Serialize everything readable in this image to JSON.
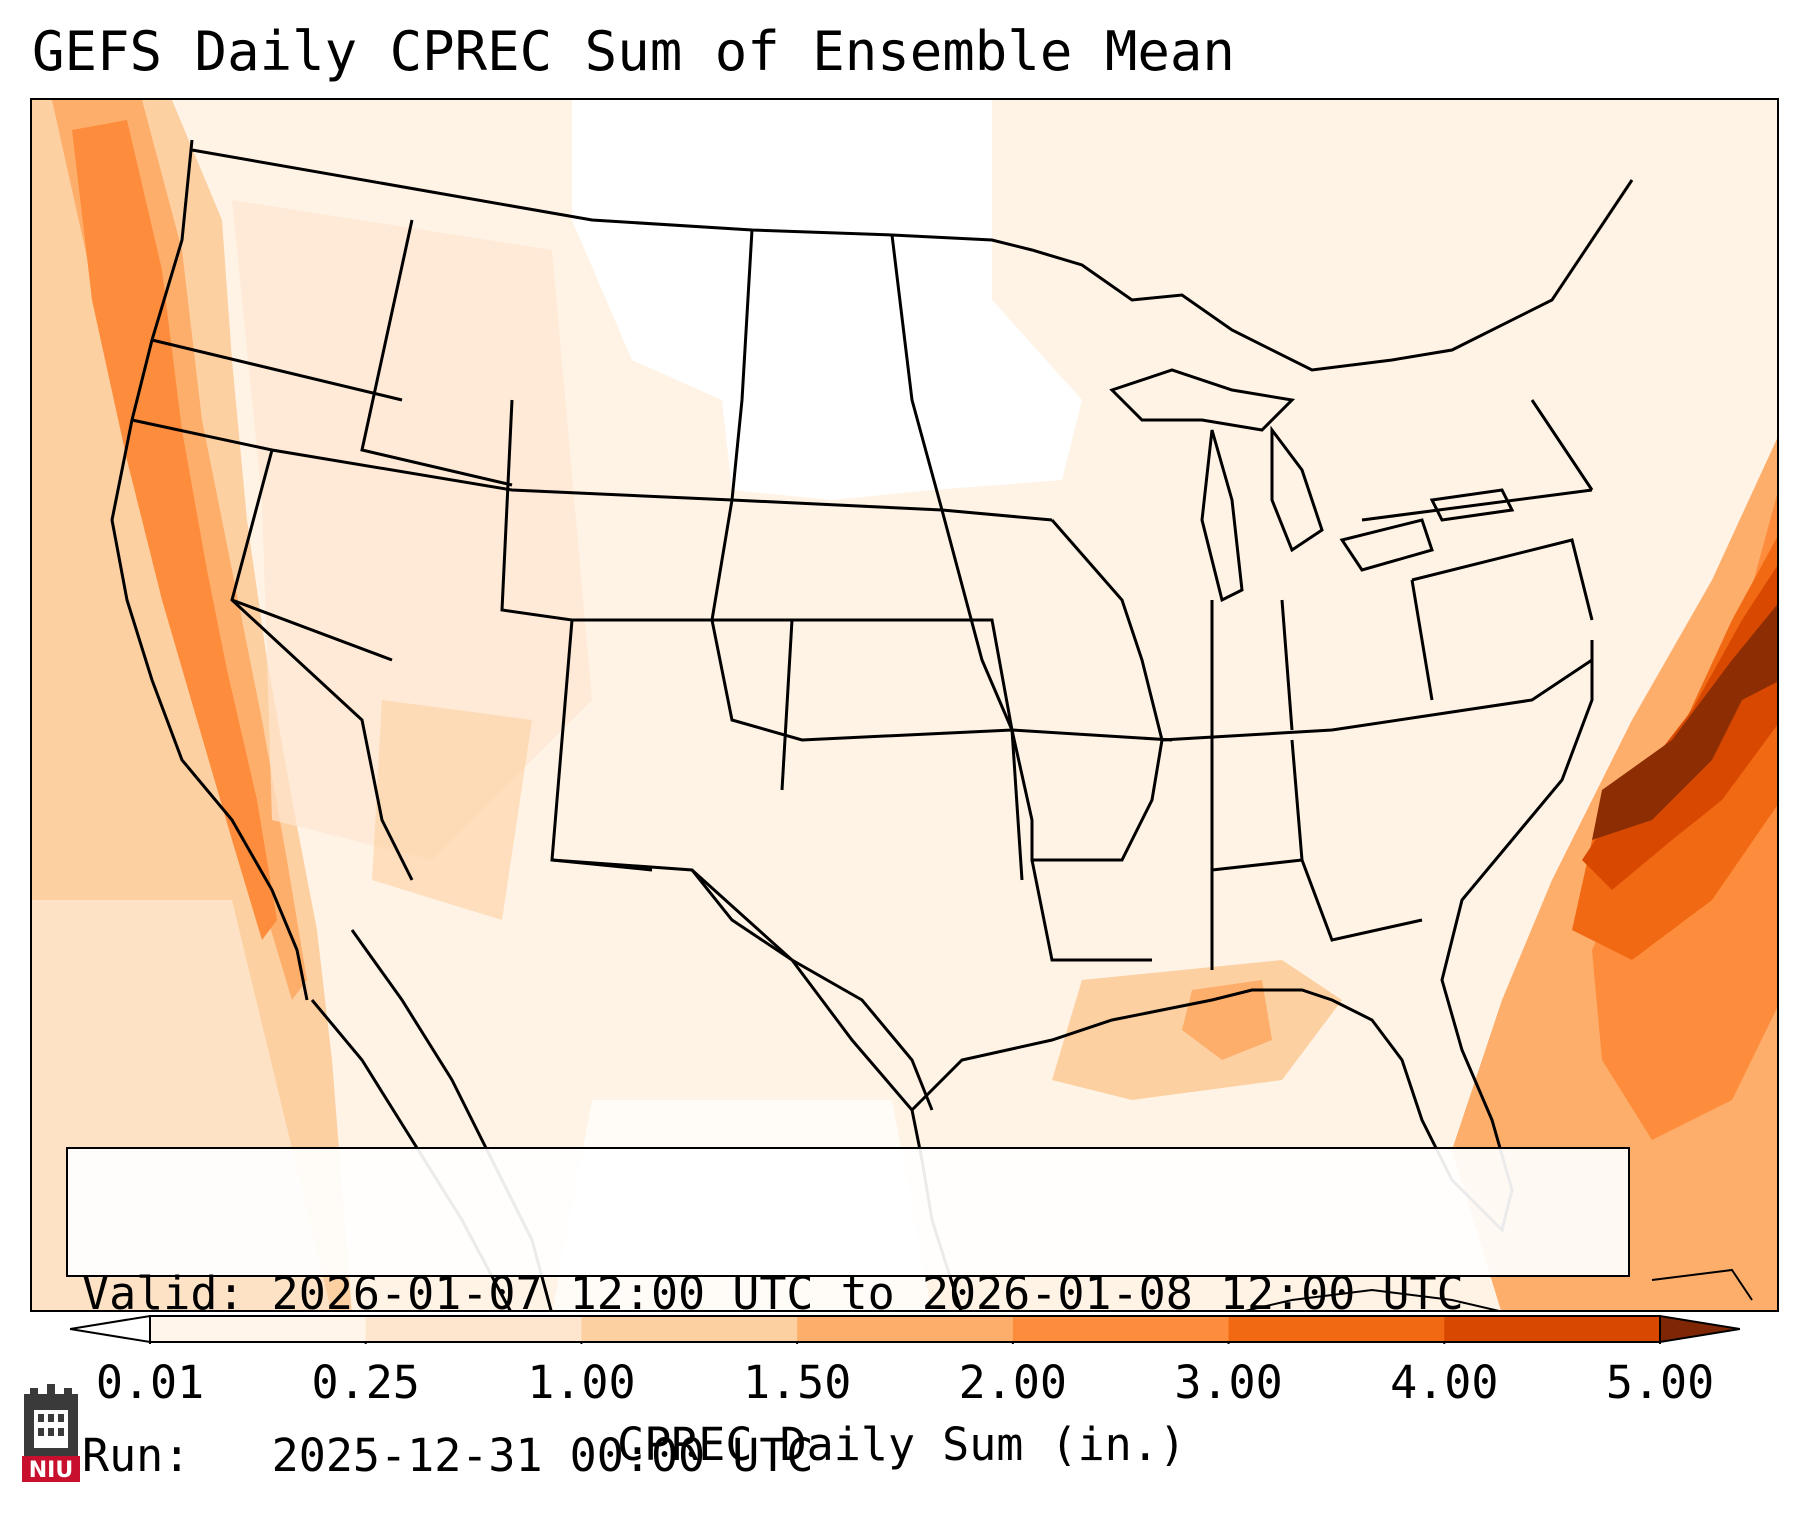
{
  "title": "GEFS Daily CPREC Sum of Ensemble Mean",
  "info_box": {
    "valid_label": "Valid:",
    "valid_value": "2026-01-07 12:00 UTC to 2026-01-08 12:00 UTC",
    "run_label": "Run:",
    "run_value": "2025-12-31 00:00 UTC"
  },
  "colorbar": {
    "label": "CPREC Daily Sum (in.)",
    "ticks": [
      "0.01",
      "0.25",
      "1.00",
      "1.50",
      "2.00",
      "3.00",
      "4.00",
      "5.00"
    ],
    "colors": [
      "#fff5eb",
      "#fee6ce",
      "#fdd0a2",
      "#fdae6b",
      "#fd8d3c",
      "#f16913",
      "#d94801",
      "#8c2d04"
    ],
    "under_color": "#ffffff",
    "over_color": "#7f2704"
  },
  "logo": {
    "text": "NIU",
    "color": "#c8102e"
  }
}
